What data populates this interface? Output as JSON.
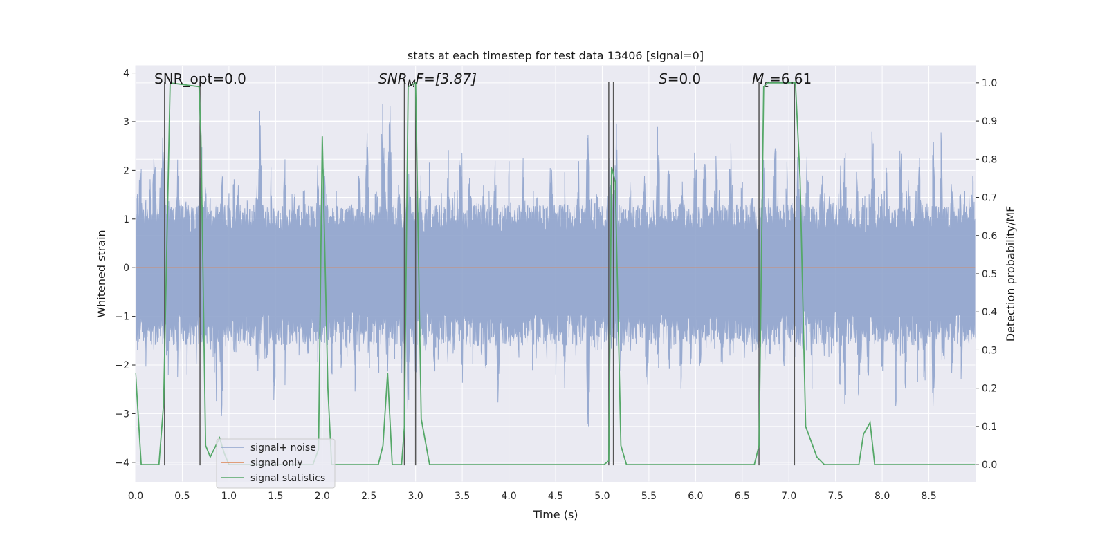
{
  "chart_data": {
    "type": "line",
    "title": "stats at each timestep for test data 13406 [signal=0]",
    "xlabel": "Time (s)",
    "ylabel": "Whitened strain",
    "y2label": "Detection probability/MF",
    "xlim": [
      0.0,
      9.0
    ],
    "ylim": [
      -4.4,
      4.15
    ],
    "y2lim": [
      -0.045,
      1.045
    ],
    "xticks": [
      "0.0",
      "0.5",
      "1.0",
      "1.5",
      "2.0",
      "2.5",
      "3.0",
      "3.5",
      "4.0",
      "4.5",
      "5.0",
      "5.5",
      "6.0",
      "6.5",
      "7.0",
      "7.5",
      "8.0",
      "8.5"
    ],
    "yticks": [
      "4",
      "3",
      "2",
      "1",
      "0",
      "−1",
      "−2",
      "−3",
      "−4"
    ],
    "y2ticks": [
      "1.0",
      "0.9",
      "0.8",
      "0.7",
      "0.6",
      "0.5",
      "0.4",
      "0.3",
      "0.2",
      "0.1",
      "0.0"
    ],
    "grid": true,
    "legend_position": "lower-left",
    "annotations": {
      "snr_opt": "SNR_opt=0.0",
      "snr_mf_main": "SNR",
      "snr_mf_sub": "M",
      "snr_mf_rest": "F=[3.87]",
      "s_main": "S",
      "s_rest": "=0.0",
      "mc_main": "M",
      "mc_sub": "c",
      "mc_rest": "=6.61"
    },
    "series": [
      {
        "name": "signal+ noise",
        "color": "#8fa3cc",
        "envelope": {
          "typical_upper": 1.3,
          "typical_lower": -1.6,
          "peaks": [
            [
              0.02,
              1.7
            ],
            [
              0.05,
              2.6
            ],
            [
              0.15,
              2.2
            ],
            [
              0.2,
              2.7
            ],
            [
              0.27,
              2.5
            ],
            [
              0.3,
              3.1
            ],
            [
              0.45,
              2.6
            ],
            [
              0.55,
              2.0
            ],
            [
              0.7,
              2.8
            ],
            [
              0.75,
              2.0
            ],
            [
              0.92,
              2.3
            ],
            [
              1.05,
              2.3
            ],
            [
              1.1,
              1.9
            ],
            [
              1.2,
              1.7
            ],
            [
              1.3,
              2.3
            ],
            [
              1.33,
              3.3
            ],
            [
              1.45,
              2.1
            ],
            [
              1.6,
              2.4
            ],
            [
              1.7,
              1.9
            ],
            [
              1.8,
              2.3
            ],
            [
              1.95,
              2.3
            ],
            [
              2.02,
              2.6
            ],
            [
              2.15,
              2.0
            ],
            [
              2.3,
              1.8
            ],
            [
              2.4,
              2.2
            ],
            [
              2.48,
              2.8
            ],
            [
              2.57,
              2.2
            ],
            [
              2.65,
              3.6
            ],
            [
              2.72,
              3.3
            ],
            [
              2.82,
              2.4
            ],
            [
              2.92,
              2.0
            ],
            [
              3.05,
              2.0
            ],
            [
              3.15,
              2.2
            ],
            [
              3.35,
              2.5
            ],
            [
              3.48,
              3.2
            ],
            [
              3.58,
              2.5
            ],
            [
              3.72,
              2.0
            ],
            [
              3.85,
              2.5
            ],
            [
              4.0,
              2.2
            ],
            [
              4.15,
              2.4
            ],
            [
              4.3,
              2.1
            ],
            [
              4.45,
              2.4
            ],
            [
              4.6,
              2.0
            ],
            [
              4.75,
              2.3
            ],
            [
              4.85,
              3.2
            ],
            [
              4.95,
              2.1
            ],
            [
              5.08,
              2.8
            ],
            [
              5.15,
              3.4
            ],
            [
              5.3,
              2.3
            ],
            [
              5.45,
              2.6
            ],
            [
              5.6,
              3.1
            ],
            [
              5.72,
              2.8
            ],
            [
              5.86,
              2.4
            ],
            [
              6.0,
              2.8
            ],
            [
              6.1,
              2.7
            ],
            [
              6.22,
              2.6
            ],
            [
              6.38,
              2.6
            ],
            [
              6.5,
              2.3
            ],
            [
              6.6,
              2.2
            ],
            [
              6.73,
              2.4
            ],
            [
              6.85,
              3.3
            ],
            [
              6.98,
              2.2
            ],
            [
              7.1,
              2.4
            ],
            [
              7.2,
              2.6
            ],
            [
              7.35,
              2.5
            ],
            [
              7.55,
              2.4
            ],
            [
              7.6,
              2.8
            ],
            [
              7.73,
              2.0
            ],
            [
              7.9,
              3.4
            ],
            [
              8.05,
              2.1
            ],
            [
              8.2,
              2.8
            ],
            [
              8.28,
              2.4
            ],
            [
              8.4,
              2.6
            ],
            [
              8.55,
              3.0
            ],
            [
              8.63,
              2.9
            ],
            [
              8.75,
              2.6
            ],
            [
              8.88,
              2.0
            ],
            [
              8.97,
              2.3
            ]
          ],
          "troughs": [
            [
              0.02,
              -2.0
            ],
            [
              0.1,
              -2.5
            ],
            [
              0.2,
              -2.1
            ],
            [
              0.35,
              -2.3
            ],
            [
              0.45,
              -2.5
            ],
            [
              0.55,
              -2.4
            ],
            [
              0.65,
              -2.1
            ],
            [
              0.73,
              -2.0
            ],
            [
              0.86,
              -3.0
            ],
            [
              0.92,
              -3.1
            ],
            [
              1.05,
              -2.2
            ],
            [
              1.15,
              -2.0
            ],
            [
              1.3,
              -2.4
            ],
            [
              1.4,
              -2.8
            ],
            [
              1.48,
              -3.2
            ],
            [
              1.6,
              -2.5
            ],
            [
              1.75,
              -2.0
            ],
            [
              1.85,
              -2.7
            ],
            [
              1.95,
              -2.2
            ],
            [
              2.1,
              -2.5
            ],
            [
              2.2,
              -2.4
            ],
            [
              2.35,
              -2.6
            ],
            [
              2.5,
              -2.4
            ],
            [
              2.6,
              -2.5
            ],
            [
              2.7,
              -2.2
            ],
            [
              2.85,
              -2.2
            ],
            [
              2.92,
              -3.0
            ],
            [
              3.0,
              -2.8
            ],
            [
              3.1,
              -2.0
            ],
            [
              3.2,
              -2.5
            ],
            [
              3.35,
              -2.3
            ],
            [
              3.5,
              -2.4
            ],
            [
              3.62,
              -2.4
            ],
            [
              3.75,
              -2.6
            ],
            [
              3.88,
              -3.3
            ],
            [
              4.0,
              -2.2
            ],
            [
              4.1,
              -2.3
            ],
            [
              4.25,
              -2.2
            ],
            [
              4.4,
              -2.5
            ],
            [
              4.5,
              -2.2
            ],
            [
              4.6,
              -2.5
            ],
            [
              4.72,
              -2.2
            ],
            [
              4.85,
              -3.8
            ],
            [
              4.95,
              -2.4
            ],
            [
              5.1,
              -2.0
            ],
            [
              5.2,
              -2.2
            ],
            [
              5.3,
              -2.3
            ],
            [
              5.48,
              -3.0
            ],
            [
              5.6,
              -2.5
            ],
            [
              5.72,
              -2.6
            ],
            [
              5.85,
              -3.0
            ],
            [
              5.95,
              -2.2
            ],
            [
              6.05,
              -2.5
            ],
            [
              6.15,
              -2.0
            ],
            [
              6.28,
              -2.5
            ],
            [
              6.4,
              -2.2
            ],
            [
              6.52,
              -2.3
            ],
            [
              6.65,
              -2.2
            ],
            [
              6.8,
              -2.1
            ],
            [
              6.95,
              -2.6
            ],
            [
              7.08,
              -2.4
            ],
            [
              7.15,
              -2.2
            ],
            [
              7.25,
              -2.5
            ],
            [
              7.4,
              -2.0
            ],
            [
              7.55,
              -2.8
            ],
            [
              7.6,
              -3.2
            ],
            [
              7.75,
              -2.8
            ],
            [
              7.85,
              -2.5
            ],
            [
              8.0,
              -2.6
            ],
            [
              8.15,
              -3.0
            ],
            [
              8.25,
              -2.7
            ],
            [
              8.38,
              -2.6
            ],
            [
              8.45,
              -2.9
            ],
            [
              8.55,
              -3.3
            ],
            [
              8.65,
              -2.8
            ],
            [
              8.75,
              -2.6
            ],
            [
              8.85,
              -2.4
            ],
            [
              8.97,
              -2.3
            ]
          ]
        }
      },
      {
        "name": "signal only",
        "color": "#dd8452",
        "x": [
          0.0,
          9.0
        ],
        "y": [
          0.0,
          0.0
        ]
      },
      {
        "name": "signal statistics",
        "color": "#55a868",
        "axis": "right",
        "x": [
          0.0,
          0.06,
          0.25,
          0.3,
          0.37,
          0.68,
          0.7,
          0.75,
          0.8,
          0.9,
          0.95,
          1.0,
          1.9,
          1.96,
          2.0,
          2.06,
          2.1,
          2.6,
          2.65,
          2.7,
          2.75,
          2.85,
          2.88,
          2.92,
          3.0,
          3.06,
          3.15,
          5.02,
          5.07,
          5.1,
          5.14,
          5.2,
          5.26,
          6.63,
          6.68,
          6.73,
          6.77,
          7.07,
          7.12,
          7.18,
          7.3,
          7.38,
          7.45,
          7.75,
          7.8,
          7.87,
          7.92,
          9.0
        ],
        "y": [
          0.24,
          0.0,
          0.0,
          0.16,
          1.0,
          0.99,
          0.86,
          0.05,
          0.02,
          0.07,
          0.03,
          0.0,
          0.0,
          0.04,
          0.86,
          0.2,
          0.0,
          0.0,
          0.05,
          0.24,
          0.0,
          0.0,
          0.1,
          0.99,
          1.0,
          0.12,
          0.0,
          0.0,
          0.01,
          0.78,
          0.74,
          0.05,
          0.0,
          0.0,
          0.05,
          0.99,
          1.0,
          1.0,
          0.75,
          0.1,
          0.02,
          0.0,
          0.0,
          0.0,
          0.08,
          0.11,
          0.0,
          0.0
        ]
      }
    ],
    "vertical_markers": [
      0.31,
      0.69,
      2.88,
      3.0,
      5.07,
      5.12,
      6.68,
      7.06
    ]
  }
}
